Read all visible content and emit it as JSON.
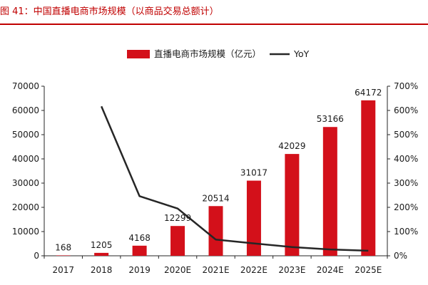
{
  "figure": {
    "title": "图 41：中国直播电商市场规模（以商品交易总额计）"
  },
  "chart_data": {
    "type": "bar",
    "categories": [
      "2017",
      "2018",
      "2019",
      "2020E",
      "2021E",
      "2022E",
      "2023E",
      "2024E",
      "2025E"
    ],
    "series": [
      {
        "name": "直播电商市场规模（亿元）",
        "type": "bar",
        "axis": "left",
        "values": [
          168,
          1205,
          4168,
          12299,
          20514,
          31017,
          42029,
          53166,
          64172
        ]
      },
      {
        "name": "YoY",
        "type": "line",
        "axis": "right",
        "values": [
          null,
          6.17,
          2.46,
          1.95,
          0.67,
          0.51,
          0.36,
          0.26,
          0.21
        ]
      }
    ],
    "data_labels": [
      "168",
      "1205",
      "4168",
      "12299",
      "20514",
      "31017",
      "42029",
      "53166",
      "64172"
    ],
    "y_left": {
      "min": 0,
      "max": 70000,
      "ticks": [
        "0",
        "10000",
        "20000",
        "30000",
        "40000",
        "50000",
        "60000",
        "70000"
      ]
    },
    "y_right": {
      "min": 0,
      "max": 7,
      "ticks": [
        "0%",
        "100%",
        "200%",
        "300%",
        "400%",
        "500%",
        "600%",
        "700%"
      ]
    },
    "legend_position": "top-center",
    "grid": false,
    "colors": {
      "bar": "#d3101a",
      "line": "#262626"
    }
  }
}
